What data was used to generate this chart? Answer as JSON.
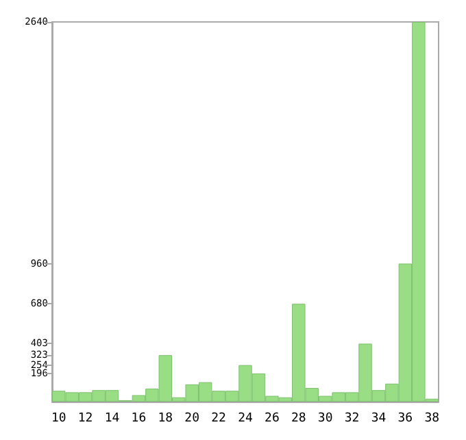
{
  "chart_data": {
    "type": "bar",
    "categories": [
      "10",
      null,
      "12",
      null,
      "14",
      null,
      "16",
      null,
      "18",
      null,
      "20",
      null,
      "22",
      null,
      "24",
      null,
      "26",
      null,
      "28",
      null,
      "30",
      null,
      "32",
      null,
      "34",
      null,
      "36",
      null,
      "38"
    ],
    "values": [
      75,
      65,
      65,
      80,
      80,
      10,
      45,
      90,
      323,
      30,
      120,
      135,
      75,
      75,
      254,
      196,
      40,
      30,
      680,
      95,
      40,
      65,
      65,
      403,
      80,
      125,
      960,
      2640,
      20
    ],
    "color": "#99dd85",
    "ylim": [
      0,
      2640
    ],
    "yticks": [
      196,
      254,
      323,
      403,
      680,
      960,
      2640
    ],
    "grid": false
  }
}
